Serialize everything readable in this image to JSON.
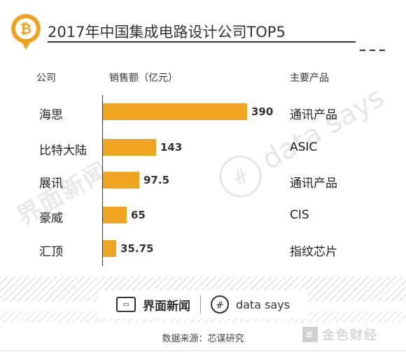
{
  "header": {
    "title": "2017年中国集成电路设计公司TOP5",
    "coin_symbol": "₿",
    "icon": "bitcoin-coin-pin-icon"
  },
  "columns": {
    "company": "公司",
    "sales": "销售额（亿元）",
    "product": "主要产品"
  },
  "chart_data": {
    "type": "bar",
    "orientation": "horizontal",
    "title": "2017年中国集成电路设计公司TOP5",
    "categories": [
      "海思",
      "比特大陆",
      "展讯",
      "豪威",
      "汇顶"
    ],
    "values": [
      390,
      143,
      97.5,
      65,
      35.75
    ],
    "value_labels": [
      "390",
      "143",
      "97.5",
      "65",
      "35.75"
    ],
    "products": [
      "通讯产品",
      "ASIC",
      "通讯产品",
      "CIS",
      "指纹芯片"
    ],
    "xlabel": "销售额（亿元）",
    "ylabel": "公司",
    "xlim": [
      0,
      390
    ],
    "bar_color": "#f0a521"
  },
  "watermarks": {
    "left": "界面新闻",
    "right": "data says",
    "right_icon": "ᚌ"
  },
  "brand": {
    "left": "界面新闻",
    "right": "data says",
    "left_icon": "jiemian-icon",
    "right_icon": "data-says-icon",
    "right_symbol": "ᚌ"
  },
  "source": "数据来源：芯谋研究",
  "corner_logo": {
    "text": "金色财经",
    "icon": "jinse-logo-icon",
    "symbol": "≡"
  }
}
